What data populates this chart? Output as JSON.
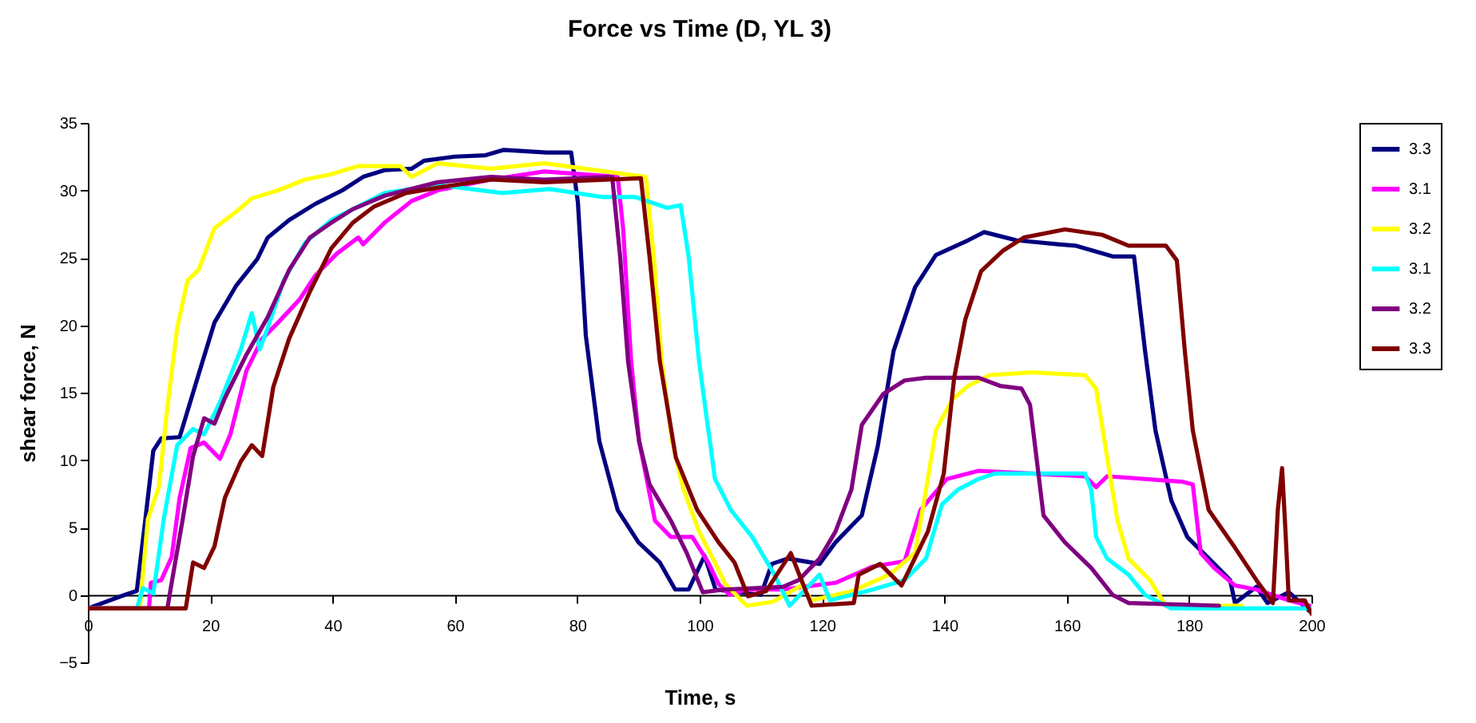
{
  "chart_data": {
    "type": "line",
    "title": "Force vs Time (D, YL 3)",
    "xlabel": "Time, s",
    "ylabel": "shear force, N",
    "xlim": [
      0,
      200
    ],
    "xticks": [
      0,
      20,
      40,
      60,
      80,
      100,
      120,
      140,
      160,
      180,
      200
    ],
    "ylim": [
      -5,
      35
    ],
    "yticks": [
      -5,
      0,
      5,
      10,
      15,
      20,
      25,
      30,
      35
    ],
    "grid": false,
    "legend": "right",
    "marker": "none",
    "line_style": "solid",
    "series": [
      {
        "name": "3.3",
        "color": "#000080",
        "x": [
          0,
          6,
          8,
          9.4,
          10.7,
          12,
          15,
          18,
          20.7,
          24.2,
          27.7,
          29.4,
          32.9,
          37.2,
          41.6,
          45,
          48.5,
          52.9,
          55,
          60,
          65,
          68,
          75,
          79,
          80.1,
          81.4,
          83.6,
          86.6,
          90,
          93.5,
          96,
          98.2,
          100.8,
          102.6,
          110,
          111.8,
          114.4,
          119.6,
          122.2,
          126.5,
          129.1,
          131.7,
          135.2,
          138.6,
          143.9,
          146.5,
          151.7,
          158.6,
          161.4,
          167.5,
          171,
          172.8,
          174.5,
          177.1,
          179.7,
          184.1,
          186.7,
          187.5,
          191,
          192.8,
          196.3,
          199.7
        ],
        "values": [
          -1,
          0,
          0.3,
          5.6,
          10.7,
          11.6,
          11.7,
          16.2,
          20.2,
          22.9,
          24.9,
          26.5,
          27.8,
          29,
          30,
          31,
          31.5,
          31.6,
          32.2,
          32.5,
          32.6,
          33,
          32.8,
          32.8,
          29.1,
          19.2,
          11.4,
          6.3,
          3.9,
          2.4,
          0.4,
          0.4,
          2.9,
          0.4,
          0,
          2.3,
          2.7,
          2.3,
          3.9,
          5.9,
          11,
          18.1,
          22.8,
          25.2,
          26.3,
          26.9,
          26.3,
          26,
          25.9,
          25.1,
          25.1,
          18.1,
          12.2,
          7,
          4.3,
          2.3,
          1.1,
          -0.6,
          0.6,
          -0.6,
          0.2,
          -1.2
        ]
      },
      {
        "name": "3.1",
        "color": "#ff00ff",
        "x": [
          0,
          10,
          10.3,
          12,
          13.7,
          15,
          16.8,
          19,
          21.6,
          23.3,
          25.9,
          28.5,
          31.1,
          34.6,
          37.2,
          40.7,
          44.2,
          45,
          48.5,
          52.9,
          57.2,
          65.9,
          74.6,
          86.6,
          87.5,
          88.8,
          90.1,
          92.7,
          95.3,
          98.8,
          101.4,
          103.1,
          104.9,
          107.5,
          113.6,
          122.2,
          128.3,
          133.5,
          136.1,
          140.4,
          145.6,
          154.3,
          163,
          164.8,
          166.6,
          178.8,
          180.6,
          181.9,
          184.1,
          187.5,
          191,
          196.3,
          199.7
        ],
        "values": [
          -1,
          -1,
          0.9,
          1.1,
          2.8,
          7.2,
          10.9,
          11.3,
          10.1,
          11.9,
          16.6,
          19,
          20.2,
          21.9,
          23.7,
          25.3,
          26.5,
          26,
          27.6,
          29.2,
          30,
          30.8,
          31.4,
          31,
          27.1,
          17.3,
          11.4,
          5.5,
          4.3,
          4.3,
          2.4,
          0.8,
          0,
          0.4,
          0.4,
          0.9,
          2.1,
          2.5,
          6.3,
          8.6,
          9.2,
          9,
          8.8,
          8,
          8.8,
          8.4,
          8.2,
          3.1,
          2,
          0.7,
          0.4,
          -0.4,
          -0.8
        ]
      },
      {
        "name": "3.2",
        "color": "#ffff00",
        "x": [
          0,
          8.5,
          9.8,
          11.6,
          12.9,
          14.6,
          16.3,
          18.1,
          20.7,
          24.2,
          26.8,
          31.1,
          35.5,
          39.8,
          44.2,
          51.1,
          52.9,
          57.2,
          65.9,
          74.6,
          91.2,
          92.5,
          93.8,
          95.5,
          97.3,
          99.9,
          102.5,
          104.2,
          107.7,
          112,
          116.6,
          118.3,
          125,
          131,
          135.2,
          137,
          138.6,
          141.3,
          143.9,
          147.4,
          154.3,
          163,
          164.8,
          166.6,
          168.3,
          170.1,
          173.6,
          176.2,
          188.6
        ],
        "values": [
          -1,
          -1,
          5.6,
          8,
          13.5,
          19.8,
          23.3,
          24.1,
          27.2,
          28.4,
          29.4,
          30,
          30.8,
          31.2,
          31.8,
          31.8,
          31,
          32,
          31.6,
          32,
          31,
          25.1,
          17.3,
          11.4,
          7.9,
          4.7,
          2.4,
          0.8,
          -0.8,
          -0.5,
          0.7,
          -0.4,
          0.3,
          1.5,
          3.1,
          7.8,
          12.2,
          14.5,
          15.5,
          16.3,
          16.5,
          16.3,
          15.3,
          10.2,
          5.5,
          2.7,
          1.1,
          -0.8,
          -0.8
        ]
      },
      {
        "name": "3.1",
        "color": "#00ffff",
        "x": [
          0,
          8,
          9,
          10.7,
          12.4,
          14.6,
          17.2,
          19,
          21.6,
          25,
          26.8,
          28.1,
          29.4,
          32,
          35.5,
          39.8,
          44.2,
          48.5,
          57.2,
          67.7,
          75.5,
          84.2,
          89.5,
          94.7,
          96.9,
          98.2,
          99.9,
          102.5,
          105.1,
          108.6,
          112.1,
          114.7,
          119.6,
          121.3,
          128.3,
          133.5,
          137,
          139.6,
          142.2,
          145.6,
          148.3,
          163,
          164,
          164.8,
          166.6,
          170.1,
          172.8,
          177.1,
          200
        ],
        "values": [
          -1,
          -1,
          0.5,
          0.1,
          5.6,
          11.1,
          12.3,
          11.9,
          14.3,
          18.2,
          20.9,
          18.2,
          19.8,
          23.3,
          26.1,
          27.8,
          28.8,
          29.8,
          30.4,
          29.8,
          30.1,
          29.5,
          29.5,
          28.7,
          28.9,
          25.1,
          17.3,
          8.6,
          6.3,
          4.3,
          1.6,
          -0.8,
          1.5,
          -0.4,
          0.4,
          1.1,
          2.7,
          6.7,
          7.8,
          8.6,
          9,
          9,
          7.8,
          4.3,
          2.7,
          1.5,
          0,
          -1,
          -1
        ]
      },
      {
        "name": "3.2",
        "color": "#800080",
        "x": [
          0,
          13,
          13.7,
          15.5,
          17.2,
          19,
          20.7,
          22.4,
          25.9,
          29.4,
          32.9,
          36.3,
          39.8,
          43.3,
          48.5,
          57.2,
          65.9,
          74.6,
          85.7,
          87,
          88.3,
          90.1,
          91.8,
          95.3,
          97.9,
          100.5,
          104,
          113.6,
          116.2,
          119.6,
          122.2,
          124.8,
          126.5,
          130,
          133.5,
          137,
          145.6,
          149.1,
          152.6,
          154,
          156.2,
          159.7,
          164,
          167.5,
          170.1,
          184.9
        ],
        "values": [
          -1,
          -1,
          0.9,
          5.6,
          10.3,
          13.1,
          12.7,
          14.6,
          17.8,
          20.6,
          24.1,
          26.5,
          27.6,
          28.6,
          29.6,
          30.6,
          31,
          30.8,
          31,
          25.1,
          17.3,
          11.4,
          8.2,
          5.5,
          3.1,
          0.2,
          0.4,
          0.6,
          1.1,
          2.7,
          4.7,
          7.8,
          12.6,
          14.9,
          15.9,
          16.1,
          16.1,
          15.5,
          15.3,
          14.1,
          5.9,
          3.9,
          2,
          0,
          -0.6,
          -0.8
        ]
      },
      {
        "name": "3.3",
        "color": "#800000",
        "x": [
          0,
          16,
          17.2,
          19,
          20.7,
          22.4,
          25,
          26.8,
          28.5,
          30.3,
          32.9,
          36.3,
          39.8,
          43.3,
          46.8,
          52,
          57.2,
          65.9,
          74.6,
          90.4,
          91.8,
          93.5,
          96.1,
          99.6,
          103.1,
          105.7,
          107.9,
          110.9,
          114.9,
          116.2,
          118.3,
          125.2,
          126,
          129.5,
          133,
          137.3,
          139.9,
          141.6,
          143.4,
          146,
          149.5,
          153,
          159.7,
          165.8,
          170.1,
          176.2,
          178,
          179.3,
          180.6,
          183.2,
          187.5,
          191,
          193.7,
          194.5,
          195.2,
          195.8,
          196.3,
          198.9,
          200
        ],
        "values": [
          -1,
          -1,
          2.4,
          2,
          3.6,
          7.2,
          9.9,
          11.1,
          10.3,
          15.4,
          19,
          22.5,
          25.7,
          27.6,
          28.8,
          29.8,
          30.2,
          30.8,
          30.6,
          30.9,
          25.1,
          17.3,
          10.2,
          6.3,
          3.9,
          2.4,
          -0.1,
          0.3,
          3.1,
          1.6,
          -0.8,
          -0.6,
          1.5,
          2.3,
          0.7,
          4.7,
          9,
          16.1,
          20.4,
          24,
          25.5,
          26.5,
          27.1,
          26.7,
          25.9,
          25.9,
          24.8,
          18.1,
          12.2,
          6.3,
          3.5,
          1.1,
          -0.6,
          6.3,
          9.4,
          4.3,
          -0.4,
          -0.4,
          -1.4
        ]
      }
    ]
  }
}
